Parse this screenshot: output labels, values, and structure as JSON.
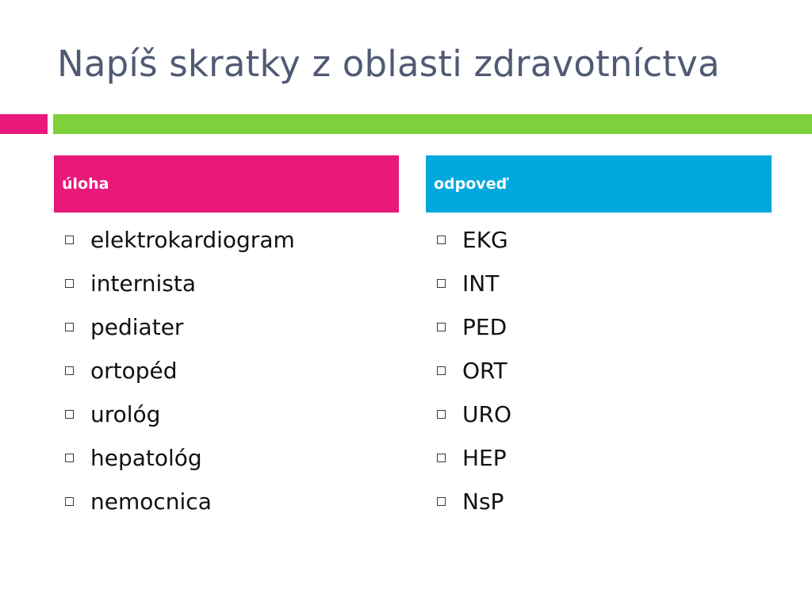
{
  "slide": {
    "title": "Napíš skratky z oblasti zdravotníctva"
  },
  "colors": {
    "title": "#505a73",
    "accent_pink": "#e8197a",
    "accent_green": "#7dd13b",
    "header_left": "#e8197a",
    "header_right": "#00a8de"
  },
  "columns": {
    "left": {
      "header": "úloha",
      "items": [
        "elektrokardiogram",
        "internista",
        "pediater",
        "ortopéd",
        "urológ",
        "hepatológ",
        "nemocnica"
      ]
    },
    "right": {
      "header": "odpoveď",
      "items": [
        "EKG",
        "INT",
        "PED",
        "ORT",
        "URO",
        "HEP",
        "NsP"
      ]
    }
  },
  "bullet_icon": "hollow-square-icon"
}
